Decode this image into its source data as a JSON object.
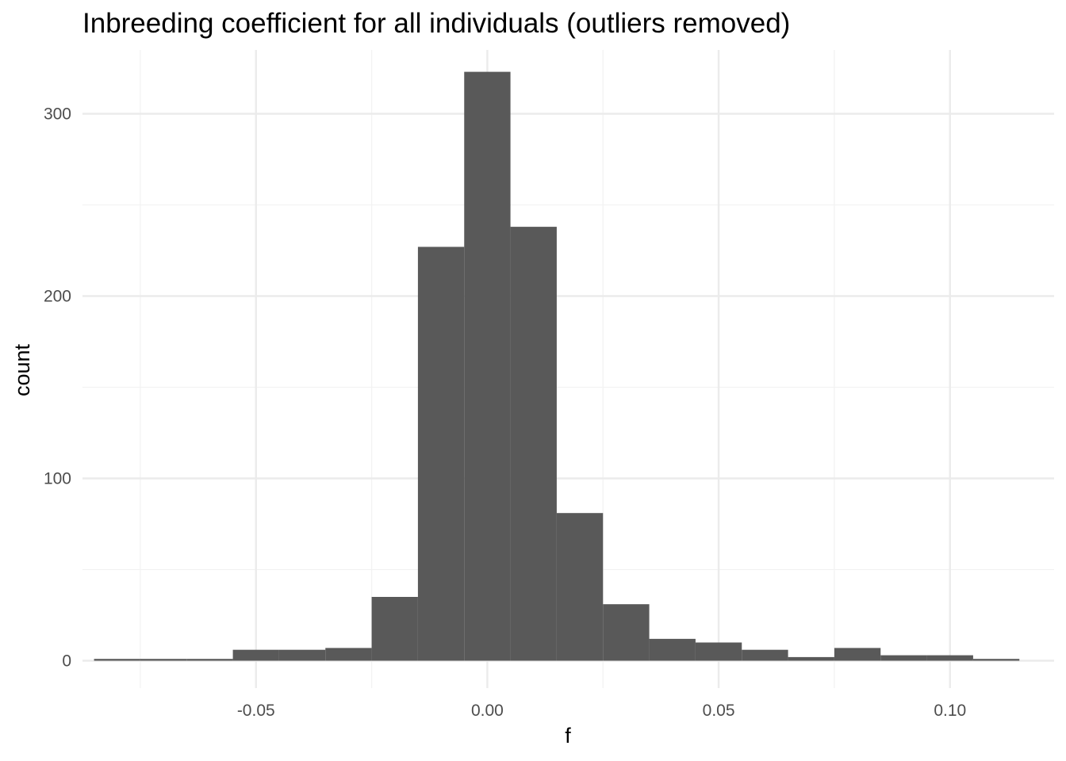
{
  "chart_data": {
    "type": "bar",
    "title": "Inbreeding coefficient for all individuals (outliers removed)",
    "xlabel": "f",
    "ylabel": "count",
    "xlim": [
      -0.0875,
      0.1225
    ],
    "ylim": [
      -15,
      335
    ],
    "x_ticks": [
      -0.05,
      0.0,
      0.05,
      0.1
    ],
    "x_tick_labels": [
      "-0.05",
      "0.00",
      "0.05",
      "0.10"
    ],
    "y_ticks": [
      0,
      100,
      200,
      300
    ],
    "y_tick_labels": [
      "0",
      "100",
      "200",
      "300"
    ],
    "grid": true,
    "bin_width": 0.01,
    "bins": [
      {
        "x0": -0.085,
        "x1": -0.075,
        "count": 1
      },
      {
        "x0": -0.075,
        "x1": -0.065,
        "count": 1
      },
      {
        "x0": -0.065,
        "x1": -0.055,
        "count": 1
      },
      {
        "x0": -0.055,
        "x1": -0.045,
        "count": 6
      },
      {
        "x0": -0.045,
        "x1": -0.035,
        "count": 6
      },
      {
        "x0": -0.035,
        "x1": -0.025,
        "count": 7
      },
      {
        "x0": -0.025,
        "x1": -0.015,
        "count": 35
      },
      {
        "x0": -0.015,
        "x1": -0.005,
        "count": 227
      },
      {
        "x0": -0.005,
        "x1": 0.005,
        "count": 323
      },
      {
        "x0": 0.005,
        "x1": 0.015,
        "count": 238
      },
      {
        "x0": 0.015,
        "x1": 0.025,
        "count": 81
      },
      {
        "x0": 0.025,
        "x1": 0.035,
        "count": 31
      },
      {
        "x0": 0.035,
        "x1": 0.045,
        "count": 12
      },
      {
        "x0": 0.045,
        "x1": 0.055,
        "count": 10
      },
      {
        "x0": 0.055,
        "x1": 0.065,
        "count": 6
      },
      {
        "x0": 0.065,
        "x1": 0.075,
        "count": 2
      },
      {
        "x0": 0.075,
        "x1": 0.085,
        "count": 7
      },
      {
        "x0": 0.085,
        "x1": 0.095,
        "count": 3
      },
      {
        "x0": 0.095,
        "x1": 0.105,
        "count": 3
      },
      {
        "x0": 0.105,
        "x1": 0.115,
        "count": 1
      }
    ],
    "colors": {
      "bar": "#595959",
      "grid": "#ebebeb",
      "background": "#ffffff"
    }
  }
}
